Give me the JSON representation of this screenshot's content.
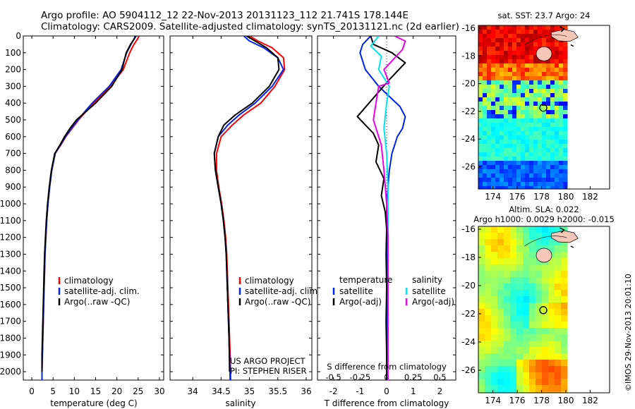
{
  "header": {
    "line1": "Argo profile: AO 5904112_12 22-Nov-2013 20131123_112 21.741S 178.144E",
    "line2": "Climatology: CARS2009. Satellite-adjusted climatology: synTS_20131121.nc (2d earlier)"
  },
  "stamp": "©IMOS 29-Nov-2013 20:01:10",
  "colors": {
    "red": "#ff0000",
    "blue": "#0022ee",
    "black": "#000000",
    "cyan": "#00e5ee",
    "magenta": "#ee00ee"
  },
  "chart_data": [
    {
      "type": "line",
      "xlabel": "temperature (deg C)",
      "xlim": [
        -2,
        31
      ],
      "xticks": [
        0,
        5,
        10,
        15,
        20,
        25,
        30
      ],
      "ylim": [
        0,
        2050
      ],
      "yticks": [
        0,
        100,
        200,
        300,
        400,
        500,
        600,
        700,
        800,
        900,
        1000,
        1100,
        1200,
        1300,
        1400,
        1500,
        1600,
        1700,
        1800,
        1900,
        2000
      ],
      "legend": [
        "climatology",
        "satellite-adj. clim.",
        "Argo(..raw -QC)"
      ],
      "series": [
        {
          "color": "red",
          "x": [
            25.2,
            24.8,
            24.0,
            23.0,
            21.5,
            18.5,
            14.5,
            11.0,
            9.5,
            8.0,
            6.8,
            5.5,
            4.7,
            4.2,
            3.8,
            3.5,
            3.3,
            3.1,
            3.0,
            2.9,
            2.8,
            2.7,
            2.6,
            2.5,
            2.4,
            2.4
          ],
          "y": [
            0,
            20,
            50,
            100,
            200,
            300,
            400,
            500,
            550,
            600,
            650,
            700,
            800,
            900,
            1000,
            1100,
            1200,
            1300,
            1400,
            1500,
            1600,
            1700,
            1800,
            1900,
            2000,
            2050
          ]
        },
        {
          "color": "blue",
          "x": [
            24.3,
            24.0,
            23.3,
            22.3,
            21.0,
            18.2,
            14.2,
            10.8,
            9.3,
            7.9,
            6.7,
            5.5,
            4.7,
            4.2,
            3.8,
            3.5,
            3.3,
            3.1,
            3.0,
            2.9,
            2.8,
            2.7,
            2.6,
            2.5,
            2.4,
            2.4
          ],
          "y": [
            0,
            20,
            50,
            100,
            200,
            300,
            400,
            500,
            550,
            600,
            650,
            700,
            800,
            900,
            1000,
            1100,
            1200,
            1300,
            1400,
            1500,
            1600,
            1700,
            1800,
            1900,
            2000,
            2050
          ]
        },
        {
          "color": "black",
          "x": [
            24.5,
            24.0,
            23.2,
            22.2,
            21.2,
            18.8,
            15.0,
            10.5,
            9.0,
            7.7,
            6.6,
            5.4,
            4.6,
            4.1,
            3.7,
            3.4,
            3.2,
            3.0,
            2.9,
            2.8,
            2.7,
            2.6,
            2.5,
            2.4,
            2.4
          ],
          "y": [
            0,
            20,
            50,
            100,
            200,
            300,
            400,
            500,
            550,
            600,
            650,
            700,
            800,
            900,
            1000,
            1100,
            1200,
            1300,
            1400,
            1500,
            1600,
            1700,
            1800,
            1900,
            2000
          ]
        }
      ]
    },
    {
      "type": "line",
      "xlabel": "salinity",
      "xlim": [
        33.6,
        36.1
      ],
      "xticks": [
        34,
        34.5,
        35,
        35.5,
        36
      ],
      "ylim": [
        0,
        2050
      ],
      "legend": [
        "climatology",
        "satellite-adj. clim.",
        "Argo(..raw -QC)"
      ],
      "annotation": [
        "US ARGO PROJECT",
        "PI: STEPHEN RISER"
      ],
      "series": [
        {
          "color": "red",
          "x": [
            35.0,
            35.15,
            35.4,
            35.6,
            35.62,
            35.45,
            35.2,
            34.9,
            34.7,
            34.5,
            34.42,
            34.42,
            34.46,
            34.51,
            34.55,
            34.58,
            34.6,
            34.61,
            34.62,
            34.63,
            34.64,
            34.65,
            34.66,
            34.67
          ],
          "y": [
            0,
            30,
            70,
            130,
            200,
            300,
            400,
            470,
            530,
            600,
            700,
            800,
            900,
            1000,
            1100,
            1200,
            1300,
            1400,
            1500,
            1600,
            1700,
            1800,
            1900,
            2050
          ]
        },
        {
          "color": "blue",
          "x": [
            34.9,
            35.0,
            35.25,
            35.5,
            35.6,
            35.4,
            35.1,
            34.82,
            34.62,
            34.45,
            34.38,
            34.4,
            34.45,
            34.5,
            34.54,
            34.57,
            34.59,
            34.6,
            34.61,
            34.62,
            34.63,
            34.64,
            34.65,
            34.66
          ],
          "y": [
            0,
            30,
            70,
            130,
            200,
            300,
            400,
            470,
            530,
            600,
            700,
            800,
            900,
            1000,
            1100,
            1200,
            1300,
            1400,
            1500,
            1600,
            1700,
            1800,
            1900,
            2050
          ]
        },
        {
          "color": "black",
          "x": [
            34.95,
            35.1,
            35.3,
            35.5,
            35.52,
            35.35,
            35.05,
            34.75,
            34.55,
            34.45,
            34.38,
            34.4,
            34.45,
            34.5,
            34.54,
            34.57,
            34.59,
            34.6,
            34.61,
            34.62,
            34.63,
            34.64,
            34.65
          ],
          "y": [
            0,
            30,
            70,
            130,
            200,
            300,
            400,
            470,
            530,
            600,
            700,
            800,
            900,
            1000,
            1100,
            1200,
            1300,
            1400,
            1500,
            1600,
            1700,
            1800,
            2000
          ]
        }
      ]
    },
    {
      "type": "line",
      "xlabel": "T difference from climatology",
      "xlim": [
        -2.6,
        2.6
      ],
      "xticks": [
        -2,
        -1,
        0,
        1,
        2
      ],
      "xlabel2": "S difference from climatology",
      "xticks2": [
        "-0.5",
        "-0.25",
        "0",
        "0.25",
        "0.5"
      ],
      "xticks2_pos": [
        -2,
        -1,
        0,
        1,
        2
      ],
      "ylim": [
        0,
        2050
      ],
      "legend_left_title": "temperature",
      "legend_right_title": "salinity",
      "legend": [
        "satellite",
        "Argo(-adj)",
        "satellite",
        "Argo(-adj)"
      ],
      "series": [
        {
          "color": "blue",
          "x": [
            -0.6,
            -0.9,
            -1.0,
            -0.8,
            -0.3,
            0.5,
            0.7,
            0.6,
            0.4,
            0.2,
            0.1,
            0.05,
            0.0,
            0.0,
            0.0,
            0.0,
            0.0,
            0.0,
            0.0
          ],
          "y": [
            0,
            50,
            100,
            200,
            300,
            420,
            480,
            550,
            600,
            700,
            800,
            900,
            1000,
            1200,
            1400,
            1600,
            1800,
            1900,
            2050
          ]
        },
        {
          "color": "black",
          "x": [
            -0.6,
            -0.5,
            0.2,
            0.7,
            0.1,
            -1.1,
            -0.8,
            -0.5,
            -0.3,
            -0.4,
            -0.1,
            -0.2,
            -0.05,
            0.0,
            -0.02,
            0.0,
            -0.02,
            0.0,
            0.0
          ],
          "y": [
            0,
            50,
            100,
            160,
            260,
            480,
            530,
            580,
            650,
            750,
            850,
            950,
            1050,
            1150,
            1300,
            1500,
            1700,
            1900,
            2050
          ]
        },
        {
          "color": "cyan",
          "x": [
            -0.3,
            -0.6,
            -0.2,
            -0.3,
            0.1,
            0.0,
            -0.1,
            0.0,
            0.05,
            0.05,
            0.05,
            0.05,
            0.05
          ],
          "y": [
            0,
            60,
            120,
            200,
            300,
            400,
            550,
            700,
            900,
            1100,
            1400,
            1700,
            2050
          ]
        },
        {
          "color": "magenta",
          "x": [
            0.3,
            0.7,
            0.6,
            -0.1,
            0.1,
            -0.3,
            -0.4,
            -0.5,
            -0.2,
            -0.1,
            0.0,
            0.05,
            0.05,
            0.05
          ],
          "y": [
            0,
            30,
            80,
            200,
            280,
            300,
            400,
            500,
            650,
            800,
            1000,
            1200,
            1500,
            2050
          ]
        }
      ]
    },
    {
      "type": "heatmap",
      "title": "sat. SST: 23.7 Argo: 24",
      "xticks": [
        174,
        176,
        178,
        180,
        182
      ],
      "yticks": [
        -16,
        -18,
        -20,
        -22,
        -24,
        -26
      ],
      "xlim": [
        172.8,
        183.6
      ],
      "ylim": [
        -27.6,
        -15.8
      ],
      "marker": {
        "lon": 178.144,
        "lat": -21.741
      }
    },
    {
      "type": "heatmap",
      "title": "Altim. SLA: 0.022",
      "subtitle": "Argo h1000: 0.0029 h2000: -0.015",
      "xticks": [
        174,
        176,
        178,
        180,
        182
      ],
      "yticks": [
        -16,
        -18,
        -20,
        -22,
        -24,
        -26
      ],
      "xlim": [
        172.8,
        183.6
      ],
      "ylim": [
        -27.6,
        -15.8
      ],
      "marker": {
        "lon": 178.144,
        "lat": -21.741
      }
    }
  ]
}
